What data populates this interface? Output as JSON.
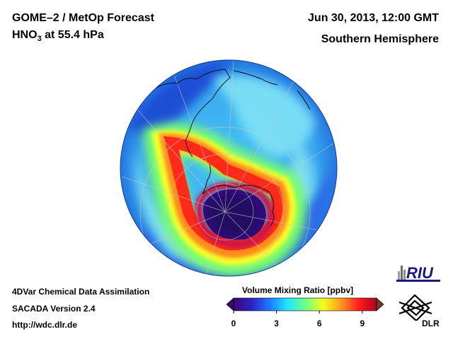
{
  "header": {
    "title_line1": "GOME–2 / MetOp Forecast",
    "title_line2_base": "HNO",
    "title_line2_sub": "3",
    "title_line2_rest": " at 55.4 hPa",
    "datetime": "Jun 30, 2013, 12:00 GMT",
    "region": "Southern Hemisphere"
  },
  "footer": {
    "line1": "4DVar Chemical Data Assimilation",
    "line2": "SACADA Version 2.4",
    "line3": "http://wdc.dlr.de"
  },
  "colorbar": {
    "title": "Volume Mixing Ratio [ppbv]",
    "ticks": [
      "0",
      "3",
      "6",
      "9"
    ],
    "tick_values": [
      0,
      3,
      6,
      9
    ],
    "range": [
      0,
      10
    ],
    "stops": [
      "#3b0a6e",
      "#2d1fc4",
      "#1e78ff",
      "#1ee6ff",
      "#6cff8a",
      "#f2ff1e",
      "#ff9a1e",
      "#ff1e1e",
      "#b2001e"
    ]
  },
  "map": {
    "projection": "orthographic",
    "hemisphere": "south",
    "palette": {
      "ocean_base": "#38b4f0",
      "low": "#2b14a0",
      "mid": "#5fd6f2",
      "high": "#ff2a1a"
    }
  },
  "logos": {
    "riu_text": "RIU",
    "dlr_text": "DLR"
  }
}
